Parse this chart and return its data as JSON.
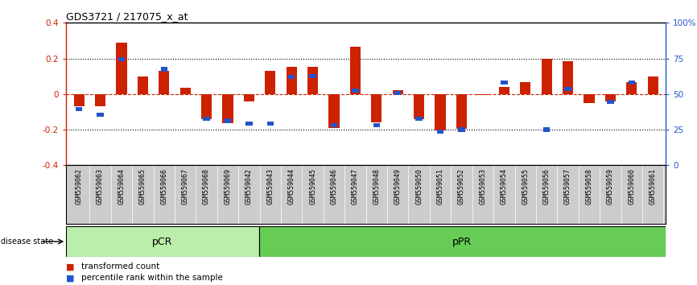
{
  "title": "GDS3721 / 217075_x_at",
  "samples": [
    "GSM559062",
    "GSM559063",
    "GSM559064",
    "GSM559065",
    "GSM559066",
    "GSM559067",
    "GSM559068",
    "GSM559069",
    "GSM559042",
    "GSM559043",
    "GSM559044",
    "GSM559045",
    "GSM559046",
    "GSM559047",
    "GSM559048",
    "GSM559049",
    "GSM559050",
    "GSM559051",
    "GSM559052",
    "GSM559053",
    "GSM559054",
    "GSM559055",
    "GSM559056",
    "GSM559057",
    "GSM559058",
    "GSM559059",
    "GSM559060",
    "GSM559061"
  ],
  "red_bars": [
    -0.07,
    -0.07,
    0.29,
    0.1,
    0.13,
    0.035,
    -0.14,
    -0.165,
    -0.04,
    0.13,
    0.155,
    0.155,
    -0.19,
    0.265,
    -0.16,
    0.02,
    -0.14,
    -0.205,
    -0.195,
    -0.005,
    0.04,
    0.065,
    0.2,
    0.185,
    -0.05,
    -0.04,
    0.065,
    0.1
  ],
  "blue_squares": [
    [
      -0.085,
      null
    ],
    [
      -0.115,
      null
    ],
    [
      0.195,
      null
    ],
    [
      null,
      null
    ],
    [
      0.14,
      null
    ],
    [
      null,
      null
    ],
    [
      -0.14,
      null
    ],
    [
      -0.15,
      null
    ],
    [
      -0.165,
      null
    ],
    [
      -0.165,
      null
    ],
    [
      0.095,
      null
    ],
    [
      0.1,
      null
    ],
    [
      -0.175,
      null
    ],
    [
      0.02,
      null
    ],
    [
      -0.175,
      null
    ],
    [
      0.005,
      null
    ],
    [
      -0.14,
      null
    ],
    [
      -0.21,
      null
    ],
    [
      -0.2,
      null
    ],
    [
      null,
      null
    ],
    [
      0.065,
      null
    ],
    [
      null,
      null
    ],
    [
      -0.2,
      null
    ],
    [
      0.03,
      null
    ],
    [
      null,
      null
    ],
    [
      -0.045,
      null
    ],
    [
      0.065,
      null
    ],
    [
      null,
      null
    ]
  ],
  "pCR_count": 9,
  "ylim": [
    -0.4,
    0.4
  ],
  "yticks_left": [
    -0.4,
    -0.2,
    0.0,
    0.2,
    0.4
  ],
  "yticks_right": [
    0,
    25,
    50,
    75,
    100
  ],
  "bar_color": "#cc2200",
  "blue_color": "#2255cc",
  "pCR_color": "#bbeeaa",
  "pPR_color": "#66cc55",
  "tick_bg_color": "#cccccc"
}
